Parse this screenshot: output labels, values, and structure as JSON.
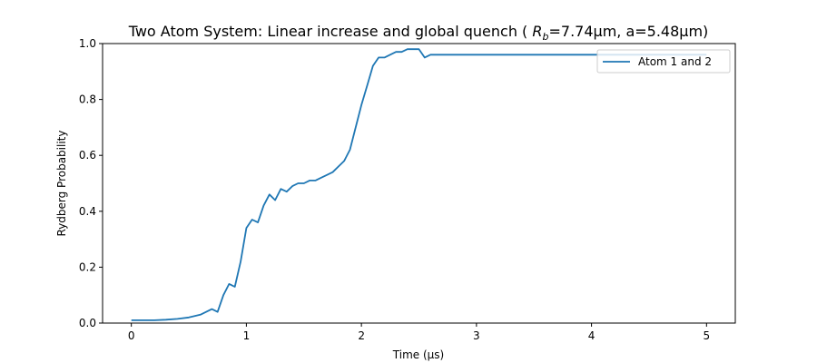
{
  "chart_data": {
    "type": "line",
    "title_main": "Two Atom System: Linear increase and global quench ( ",
    "title_rb": "R",
    "title_sub": "b",
    "title_rest": "=7.74μm, a=5.48μm)",
    "xlabel": "Time (μs)",
    "ylabel": "Rydberg Probability",
    "xlim": [
      -0.25,
      5.25
    ],
    "ylim": [
      0.0,
      1.0
    ],
    "xticks": [
      0,
      1,
      2,
      3,
      4,
      5
    ],
    "xtick_labels": [
      "0",
      "1",
      "2",
      "3",
      "4",
      "5"
    ],
    "yticks": [
      0.0,
      0.2,
      0.4,
      0.6,
      0.8,
      1.0
    ],
    "ytick_labels": [
      "0.0",
      "0.2",
      "0.4",
      "0.6",
      "0.8",
      "1.0"
    ],
    "grid": false,
    "legend_position": "top-right",
    "series": [
      {
        "name": "Atom 1 and 2",
        "color": "#1f77b4",
        "x": [
          0.0,
          0.1,
          0.2,
          0.3,
          0.4,
          0.5,
          0.6,
          0.7,
          0.75,
          0.8,
          0.85,
          0.9,
          0.95,
          1.0,
          1.05,
          1.1,
          1.15,
          1.2,
          1.25,
          1.3,
          1.35,
          1.4,
          1.45,
          1.5,
          1.55,
          1.6,
          1.65,
          1.7,
          1.75,
          1.8,
          1.85,
          1.9,
          1.95,
          2.0,
          2.05,
          2.1,
          2.15,
          2.2,
          2.25,
          2.3,
          2.35,
          2.4,
          2.45,
          2.5,
          2.55,
          2.6,
          2.7,
          2.8,
          2.9,
          3.0,
          3.2,
          3.4,
          3.6,
          3.8,
          4.0,
          4.2,
          4.4,
          4.6,
          4.8,
          5.0
        ],
        "y": [
          0.01,
          0.01,
          0.01,
          0.012,
          0.015,
          0.02,
          0.03,
          0.05,
          0.04,
          0.1,
          0.14,
          0.13,
          0.22,
          0.34,
          0.37,
          0.36,
          0.42,
          0.46,
          0.44,
          0.48,
          0.47,
          0.49,
          0.5,
          0.5,
          0.51,
          0.51,
          0.52,
          0.53,
          0.54,
          0.56,
          0.58,
          0.62,
          0.7,
          0.78,
          0.85,
          0.92,
          0.95,
          0.95,
          0.96,
          0.97,
          0.97,
          0.98,
          0.98,
          0.98,
          0.95,
          0.96,
          0.96,
          0.96,
          0.96,
          0.96,
          0.96,
          0.96,
          0.96,
          0.96,
          0.96,
          0.96,
          0.96,
          0.96,
          0.96,
          0.96
        ]
      }
    ]
  }
}
